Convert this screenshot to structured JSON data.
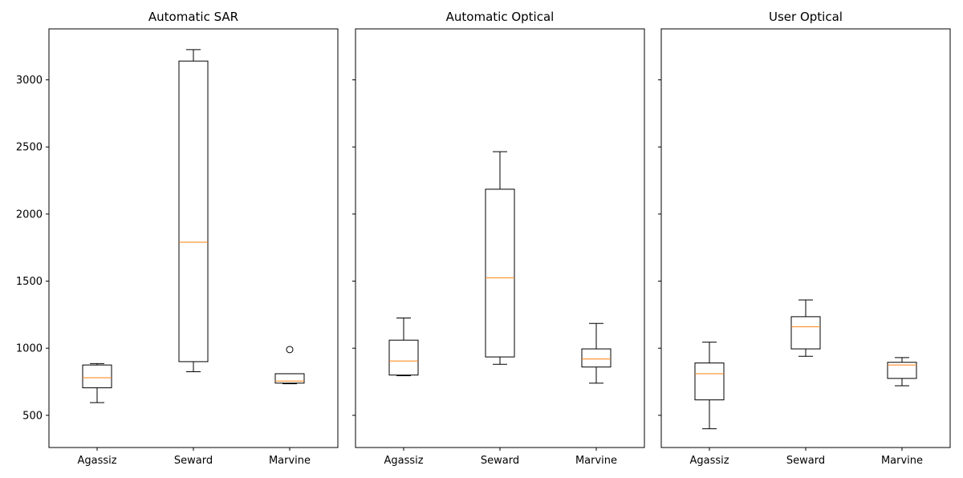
{
  "chart_data": [
    {
      "type": "boxplot",
      "title": "Automatic SAR",
      "categories": [
        "Agassiz",
        "Seward",
        "Marvine"
      ],
      "ylim": [
        260,
        3380
      ],
      "yticks": [
        500,
        1000,
        1500,
        2000,
        2500,
        3000
      ],
      "show_yticklabels": true,
      "boxes": [
        {
          "whislo": 595,
          "q1": 705,
          "med": 780,
          "q3": 875,
          "whishi": 885,
          "fliers": []
        },
        {
          "whislo": 825,
          "q1": 900,
          "med": 1790,
          "q3": 3140,
          "whishi": 3225,
          "fliers": []
        },
        {
          "whislo": 735,
          "q1": 740,
          "med": 755,
          "q3": 810,
          "whishi": 810,
          "fliers": [
            990
          ]
        }
      ],
      "colors": {
        "box": "#000000",
        "median": "#ff7f0e"
      }
    },
    {
      "type": "boxplot",
      "title": "Automatic Optical",
      "categories": [
        "Agassiz",
        "Seward",
        "Marvine"
      ],
      "ylim": [
        260,
        3380
      ],
      "yticks": [
        500,
        1000,
        1500,
        2000,
        2500,
        3000
      ],
      "show_yticklabels": false,
      "boxes": [
        {
          "whislo": 795,
          "q1": 800,
          "med": 905,
          "q3": 1060,
          "whishi": 1225,
          "fliers": []
        },
        {
          "whislo": 880,
          "q1": 935,
          "med": 1525,
          "q3": 2185,
          "whishi": 2465,
          "fliers": []
        },
        {
          "whislo": 740,
          "q1": 860,
          "med": 920,
          "q3": 995,
          "whishi": 1185,
          "fliers": []
        }
      ],
      "colors": {
        "box": "#000000",
        "median": "#ff7f0e"
      }
    },
    {
      "type": "boxplot",
      "title": "User Optical",
      "categories": [
        "Agassiz",
        "Seward",
        "Marvine"
      ],
      "ylim": [
        260,
        3380
      ],
      "yticks": [
        500,
        1000,
        1500,
        2000,
        2500,
        3000
      ],
      "show_yticklabels": false,
      "boxes": [
        {
          "whislo": 400,
          "q1": 615,
          "med": 810,
          "q3": 890,
          "whishi": 1045,
          "fliers": []
        },
        {
          "whislo": 940,
          "q1": 995,
          "med": 1160,
          "q3": 1235,
          "whishi": 1360,
          "fliers": []
        },
        {
          "whislo": 720,
          "q1": 775,
          "med": 875,
          "q3": 895,
          "whishi": 930,
          "fliers": []
        }
      ],
      "colors": {
        "box": "#000000",
        "median": "#ff7f0e"
      }
    }
  ]
}
